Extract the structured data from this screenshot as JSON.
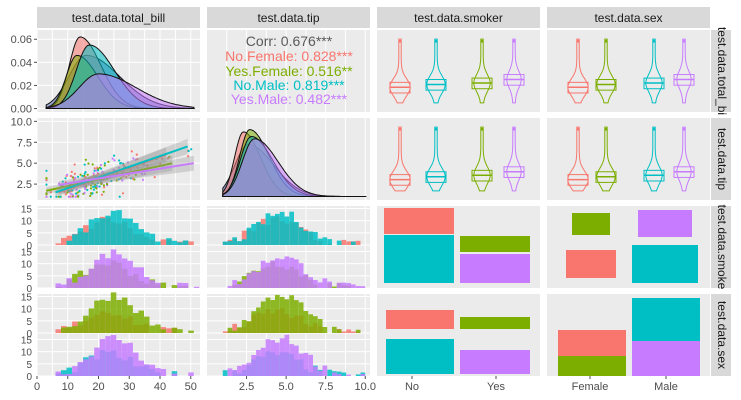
{
  "chart_data": {
    "type": "scatterplot-matrix",
    "variables": [
      "test.data.total_bill",
      "test.data.tip",
      "test.data.smoker",
      "test.data.sex"
    ],
    "column_strips": [
      "test.data.total_bill",
      "test.data.tip",
      "test.data.smoker",
      "test.data.sex"
    ],
    "row_strips": [
      "test.data.total_bi",
      "test.data.tip",
      "test.data.smoke",
      "test.data.sex"
    ],
    "groups": [
      "No.Female",
      "Yes.Female",
      "No.Male",
      "Yes.Male"
    ],
    "colors": {
      "No.Female": "#F8766D",
      "Yes.Female": "#7CAE00",
      "No.Male": "#00BFC4",
      "Yes.Male": "#C77CFF",
      "Female": "#F8766D",
      "Male": "#C77CFF",
      "No": "#00BFC4",
      "Yes": "#7CAE00",
      "overall": "#8C96C6"
    },
    "correlation": {
      "overall": "Corr: 0.676***",
      "groups": [
        {
          "label": "No.Female: 0.828***",
          "color": "#F8766D"
        },
        {
          "label": "Yes.Female: 0.516**",
          "color": "#7CAE00"
        },
        {
          "label": "No.Male: 0.819***",
          "color": "#00BFC4"
        },
        {
          "label": "Yes.Male: 0.482***",
          "color": "#C77CFF"
        }
      ]
    },
    "axes": {
      "total_bill": {
        "range": [
          0,
          53
        ],
        "ticks": [
          0,
          10,
          20,
          30,
          40,
          50
        ],
        "tick_labels": [
          "0",
          "10",
          "20",
          "30",
          "40",
          "50"
        ]
      },
      "tip": {
        "range": [
          0,
          10.3
        ],
        "ticks": [
          2.5,
          5,
          7.5,
          10
        ],
        "tick_labels": [
          "2.5",
          "5.0",
          "7.5",
          "10.0"
        ]
      },
      "total_bill_density": {
        "range": [
          -0.003,
          0.068
        ],
        "ticks": [
          0,
          0.02,
          0.04,
          0.06
        ],
        "tick_labels": [
          "0.00",
          "0.02",
          "0.04",
          "0.06"
        ]
      },
      "tip_scatter_y": {
        "range": [
          0.6,
          10.4
        ],
        "ticks": [
          2.5,
          5,
          7.5,
          10
        ],
        "tick_labels": [
          "2.5",
          "5.0",
          "7.5",
          "10.0"
        ]
      },
      "hist_counts": {
        "ticks": [
          0,
          5,
          10,
          15
        ],
        "tick_labels": [
          "0",
          "5",
          "10",
          "15"
        ]
      },
      "smoker_labels": [
        "No",
        "Yes"
      ],
      "sex_labels": [
        "Female",
        "Male"
      ]
    },
    "density_total_bill": [
      {
        "group": "overall",
        "peak_x": 16,
        "peak_y": 0.046,
        "sd": 8
      },
      {
        "group": "No.Female",
        "peak_x": 14,
        "peak_y": 0.062,
        "sd": 5
      },
      {
        "group": "Yes.Female",
        "peak_x": 13,
        "peak_y": 0.046,
        "sd": 5
      },
      {
        "group": "No.Male",
        "peak_x": 17,
        "peak_y": 0.055,
        "sd": 6
      },
      {
        "group": "Yes.Male",
        "peak_x": 20,
        "peak_y": 0.03,
        "sd": 9
      }
    ],
    "density_tip": [
      {
        "group": "overall",
        "peak_x": 2.6,
        "peak_y": 0.45,
        "sd": 1.2
      },
      {
        "group": "No.Female",
        "peak_x": 2.3,
        "peak_y": 0.56,
        "sd": 0.8
      },
      {
        "group": "Yes.Female",
        "peak_x": 2.7,
        "peak_y": 0.58,
        "sd": 0.9
      },
      {
        "group": "No.Male",
        "peak_x": 2.8,
        "peak_y": 0.52,
        "sd": 1.0
      },
      {
        "group": "Yes.Male",
        "peak_x": 3.0,
        "peak_y": 0.5,
        "sd": 1.1
      }
    ],
    "regression_tip_on_bill": [
      {
        "group": "No.Female",
        "points": [
          [
            7,
            1.5
          ],
          [
            42,
            6.0
          ]
        ]
      },
      {
        "group": "Yes.Female",
        "points": [
          [
            3,
            1.7
          ],
          [
            44,
            5.0
          ]
        ]
      },
      {
        "group": "No.Male",
        "points": [
          [
            6,
            1.5
          ],
          [
            49,
            7.0
          ]
        ]
      },
      {
        "group": "Yes.Male",
        "points": [
          [
            7,
            2.4
          ],
          [
            51,
            5.0
          ]
        ]
      }
    ],
    "mosaic_counts": {
      "smoker_by_smoker": {
        "No": 151,
        "Yes": 93
      },
      "smoker_by_sex": {
        "Female": {
          "No": 54,
          "Yes": 33
        },
        "Male": {
          "No": 97,
          "Yes": 60
        }
      },
      "sex_by_smoker": {
        "No": {
          "Female": 54,
          "Male": 97
        },
        "Yes": {
          "Female": 33,
          "Male": 60
        }
      },
      "sex_by_sex": {
        "Female": 87,
        "Male": 157
      }
    },
    "grid": true,
    "legend": "none"
  }
}
